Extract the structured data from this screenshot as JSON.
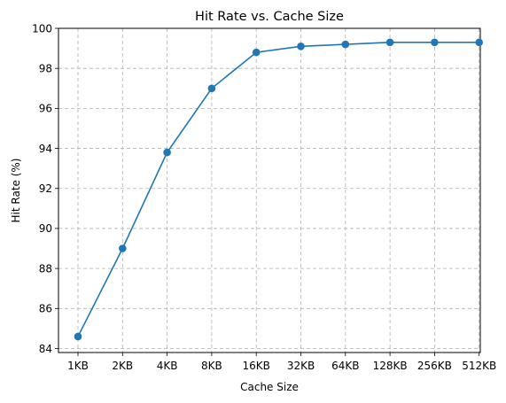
{
  "chart_data": {
    "type": "line",
    "title": "Hit Rate vs. Cache Size",
    "xlabel": "Cache Size",
    "ylabel": "Hit Rate (%)",
    "categories": [
      "1KB",
      "2KB",
      "4KB",
      "8KB",
      "16KB",
      "32KB",
      "64KB",
      "128KB",
      "256KB",
      "512KB"
    ],
    "series": [
      {
        "values": [
          84.6,
          89.0,
          93.8,
          97.0,
          98.8,
          99.1,
          99.2,
          99.3,
          99.3,
          99.3
        ],
        "color": "#1f77b4",
        "marker": "circle"
      }
    ],
    "ylim": [
      83.8,
      100.0
    ],
    "yticks": [
      84,
      86,
      88,
      90,
      92,
      94,
      96,
      98,
      100
    ],
    "grid": true,
    "grid_style": "dashed",
    "legend": "none"
  }
}
